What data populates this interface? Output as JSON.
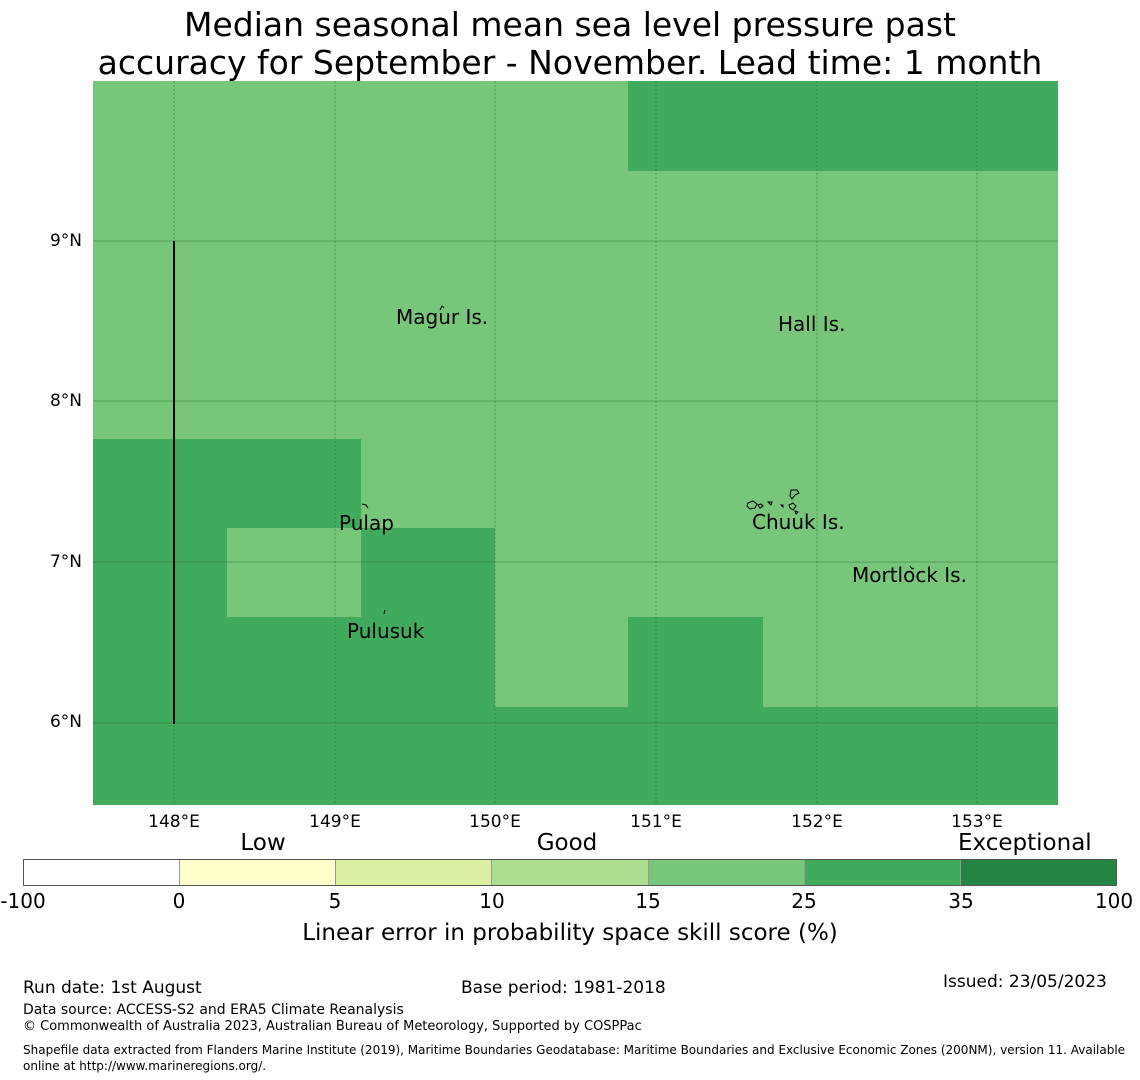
{
  "title": {
    "line1": "Median seasonal mean sea level pressure past",
    "line2": "accuracy for September - November. Lead time: 1 month"
  },
  "map": {
    "lat_labels": [
      "9°N",
      "8°N",
      "7°N",
      "6°N"
    ],
    "lon_labels": [
      "148°E",
      "149°E",
      "150°E",
      "151°E",
      "152°E",
      "153°E"
    ],
    "places": [
      {
        "name": "Magur Is."
      },
      {
        "name": "Hall Is."
      },
      {
        "name": "Pulap"
      },
      {
        "name": "Chuuk Is."
      },
      {
        "name": "Mortlock Is."
      },
      {
        "name": "Pulusuk"
      }
    ],
    "colors": {
      "band_15_25": "#78c679",
      "band_25_35": "#41ab5d",
      "grid": "#2e6b34",
      "boundary": "#000000"
    }
  },
  "colorbar": {
    "categories": [
      "Low",
      "Good",
      "Exceptional"
    ],
    "ticks": [
      "-100",
      "0",
      "5",
      "10",
      "15",
      "25",
      "35",
      "100"
    ],
    "colors": [
      "#ffffff",
      "#ffffcc",
      "#d9f0a3",
      "#addd8e",
      "#78c679",
      "#41ab5d",
      "#238443"
    ],
    "label": "Linear error in probability space skill score (%)"
  },
  "footer": {
    "run_date": "Run date: 1st August",
    "base_period": "Base period: 1981-2018",
    "issued": "Issued: 23/05/2023",
    "data_source": "Data source: ACCESS-S2 and ERA5 Climate Reanalysis",
    "copyright": "© Commonwealth of Australia 2023, Australian Bureau of Meteorology, Supported by COSPPac",
    "shapefile": "Shapefile data extracted from Flanders Marine Institute (2019), Maritime Boundaries Geodatabase: Maritime Boundaries and Exclusive Economic Zones (200NM), version 11. Available online at http://www.marineregions.org/."
  }
}
